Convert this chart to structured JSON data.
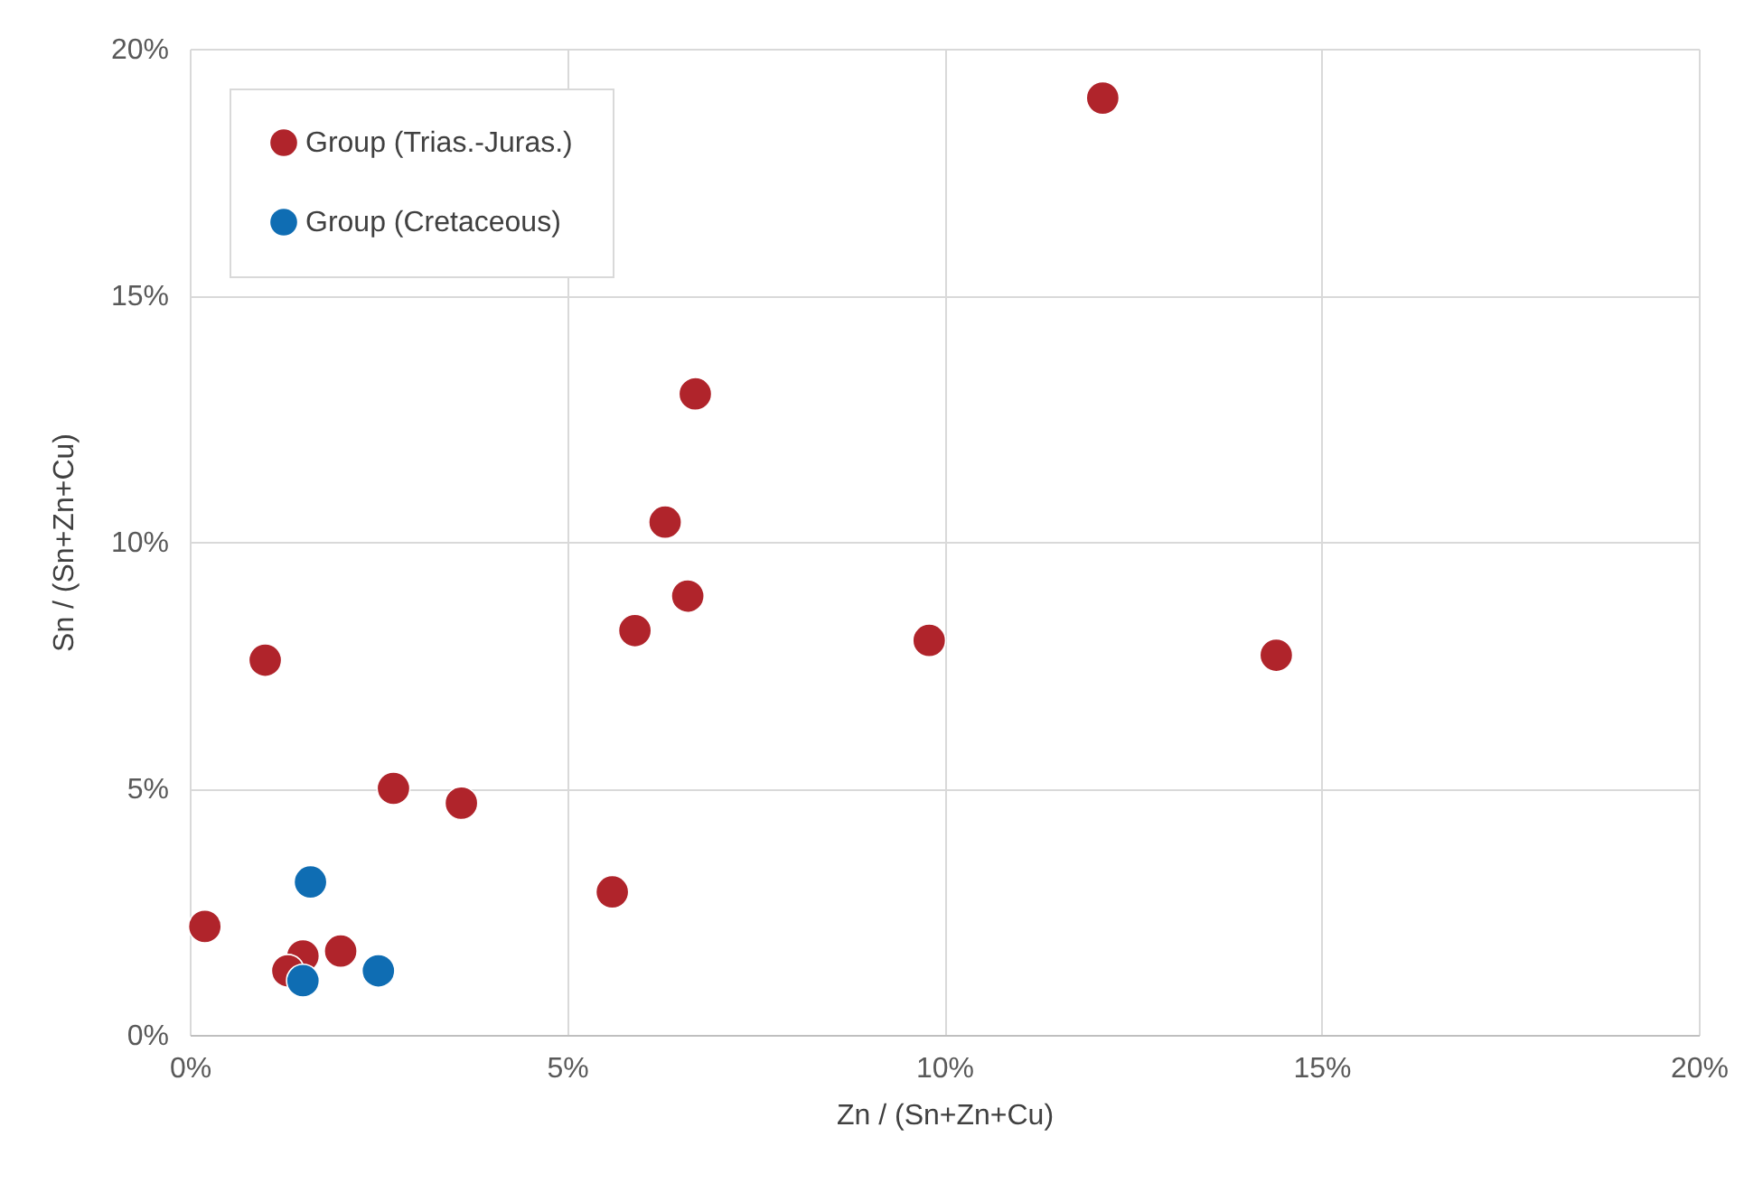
{
  "chart_data": {
    "type": "scatter",
    "xlabel": "Zn / (Sn+Zn+Cu)",
    "ylabel": "Sn / (Sn+Zn+Cu)",
    "xlim": [
      0,
      20
    ],
    "ylim": [
      0,
      20
    ],
    "xticks": [
      {
        "value": 0,
        "label": "0%"
      },
      {
        "value": 5,
        "label": "5%"
      },
      {
        "value": 10,
        "label": "10%"
      },
      {
        "value": 15,
        "label": "15%"
      },
      {
        "value": 20,
        "label": "20%"
      }
    ],
    "yticks": [
      {
        "value": 0,
        "label": "0%"
      },
      {
        "value": 5,
        "label": "5%"
      },
      {
        "value": 10,
        "label": "10%"
      },
      {
        "value": 15,
        "label": "15%"
      },
      {
        "value": 20,
        "label": "20%"
      }
    ],
    "grid": true,
    "legend": "top left",
    "marker": "circle",
    "series": [
      {
        "name": "Group (Trias.-Juras.)",
        "color": "#b0242b",
        "x": [
          0.2,
          1.0,
          2.7,
          3.6,
          5.6,
          1.5,
          1.3,
          2.0,
          12.1,
          6.7,
          6.3,
          6.6,
          5.9,
          9.8,
          14.4
        ],
        "values": [
          2.2,
          7.6,
          5.0,
          4.7,
          2.9,
          1.6,
          1.3,
          1.7,
          19.0,
          13.0,
          10.4,
          8.9,
          8.2,
          8.0,
          7.7
        ]
      },
      {
        "name": "Group (Cretaceous)",
        "color": "#0f6db3",
        "x": [
          1.6,
          1.5,
          2.5
        ],
        "values": [
          3.1,
          1.1,
          1.3
        ]
      }
    ]
  }
}
